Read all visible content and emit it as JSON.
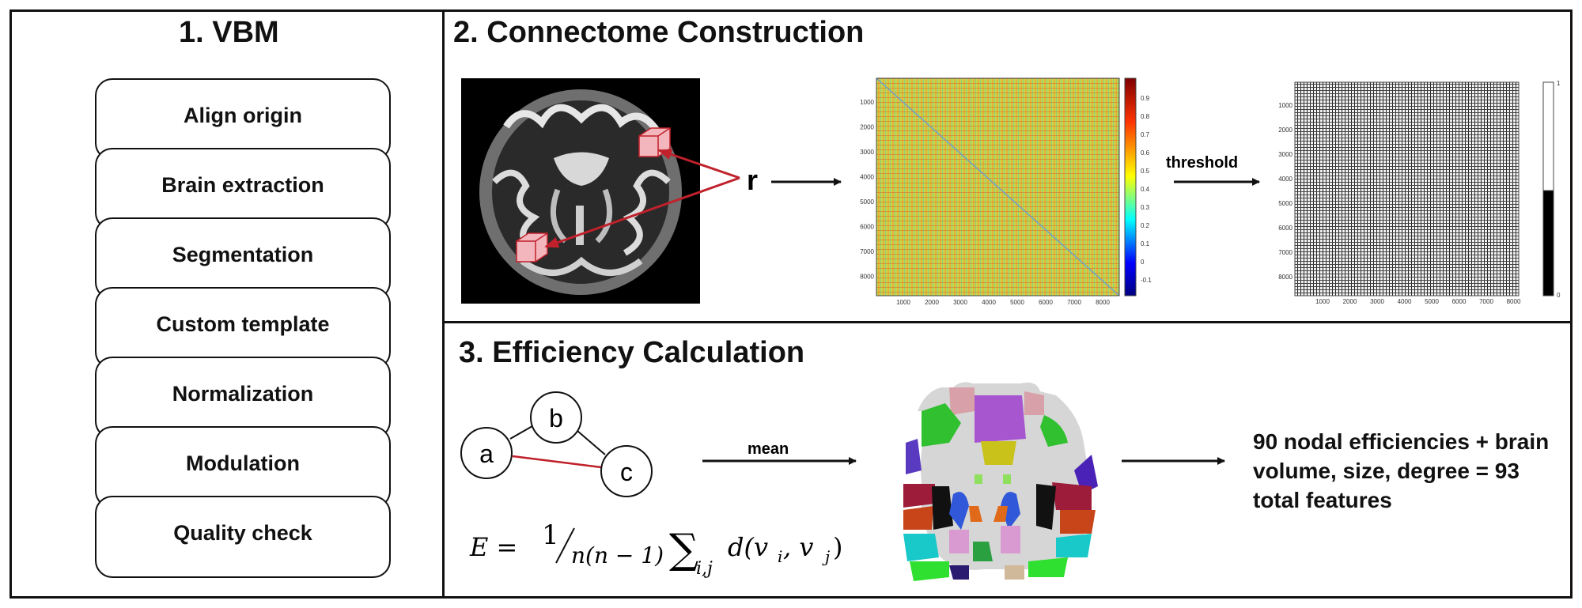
{
  "panels": {
    "vbm": {
      "title": "1. VBM",
      "steps": [
        "Align origin",
        "Brain extraction",
        "Segmentation",
        "Custom template",
        "Normalization",
        "Modulation",
        "Quality check"
      ]
    },
    "connectome": {
      "title": "2. Connectome Construction",
      "r_label": "r",
      "threshold_label": "threshold",
      "corr_matrix": {
        "ticks": [
          "1000",
          "2000",
          "3000",
          "4000",
          "5000",
          "6000",
          "7000",
          "8000"
        ],
        "colorbar_ticks": [
          "0.9",
          "0.8",
          "0.7",
          "0.6",
          "0.5",
          "0.4",
          "0.3",
          "0.2",
          "0.1",
          "0",
          "-0.1"
        ]
      },
      "binary_matrix": {
        "ticks": [
          "1000",
          "2000",
          "3000",
          "4000",
          "5000",
          "6000",
          "7000",
          "8000"
        ],
        "colorbar_ticks": [
          "1",
          "0"
        ]
      }
    },
    "efficiency": {
      "title": "3. Efficiency Calculation",
      "nodes": [
        "a",
        "b",
        "c"
      ],
      "mean_label": "mean",
      "formula": {
        "lhs": "E = ",
        "num": "1",
        "den": "n(n − 1)",
        "sum": "∑",
        "sub": "i,j",
        "term": "d(v",
        "vi": "i",
        "mid": ", v",
        "vj": "j",
        "close": ")"
      },
      "result_lines": [
        "90 nodal efficiencies + brain",
        "volume, size, degree = 93",
        "total features"
      ]
    }
  },
  "colors": {
    "arrow_red": "#c0212b",
    "cube_pink": "#f4b6bd",
    "line": "#111111"
  }
}
